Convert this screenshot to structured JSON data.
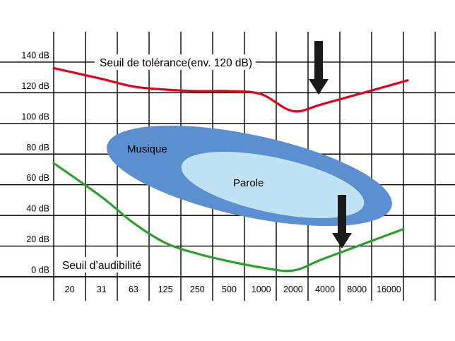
{
  "chart_data": {
    "type": "line",
    "x_ticks": [
      "20",
      "31",
      "63",
      "125",
      "250",
      "500",
      "1000",
      "2000",
      "4000",
      "8000",
      "16000"
    ],
    "y_ticks": [
      "0 dB",
      "20 dB",
      "40 dB",
      "60 dB",
      "80 dB",
      "100 dB",
      "120 dB",
      "140 dB"
    ],
    "y_values": [
      0,
      20,
      40,
      60,
      80,
      100,
      120,
      140
    ],
    "ylim": [
      -10,
      160
    ],
    "grid": true,
    "series": [
      {
        "name": "Seuil de tolérance(env. 120 dB)",
        "color": "#e3001b",
        "points": [
          {
            "x": "20",
            "y": 134
          },
          {
            "x": "31",
            "y": 127
          },
          {
            "x": "63",
            "y": 122
          },
          {
            "x": "125",
            "y": 120
          },
          {
            "x": "250",
            "y": 119
          },
          {
            "x": "500",
            "y": 119
          },
          {
            "x": "1000",
            "y": 117
          },
          {
            "x": "2000",
            "y": 106
          },
          {
            "x": "4000",
            "y": 111
          },
          {
            "x": "8000",
            "y": 126
          }
        ]
      },
      {
        "name": "Seuil d’audibilité",
        "color": "#2ca02c",
        "points": [
          {
            "x": "20",
            "y": 72
          },
          {
            "x": "31",
            "y": 50
          },
          {
            "x": "63",
            "y": 33
          },
          {
            "x": "125",
            "y": 20
          },
          {
            "x": "250",
            "y": 13
          },
          {
            "x": "500",
            "y": 8
          },
          {
            "x": "1000",
            "y": 4
          },
          {
            "x": "2000",
            "y": 2
          },
          {
            "x": "4000",
            "y": 10
          },
          {
            "x": "8000",
            "y": 29
          }
        ]
      }
    ],
    "regions": [
      {
        "name": "Musique",
        "color": "#5b8fcf",
        "x_range": [
          "31",
          "8000"
        ],
        "y_range": [
          20,
          100
        ]
      },
      {
        "name": "Parole",
        "color": "#bfe3f5",
        "x_range": [
          "125",
          "4000"
        ],
        "y_range": [
          38,
          88
        ]
      }
    ],
    "annotations": [
      {
        "kind": "arrow-down",
        "x": "2000",
        "y": 110
      },
      {
        "kind": "arrow-down",
        "x": "4000",
        "y": 7
      }
    ]
  }
}
